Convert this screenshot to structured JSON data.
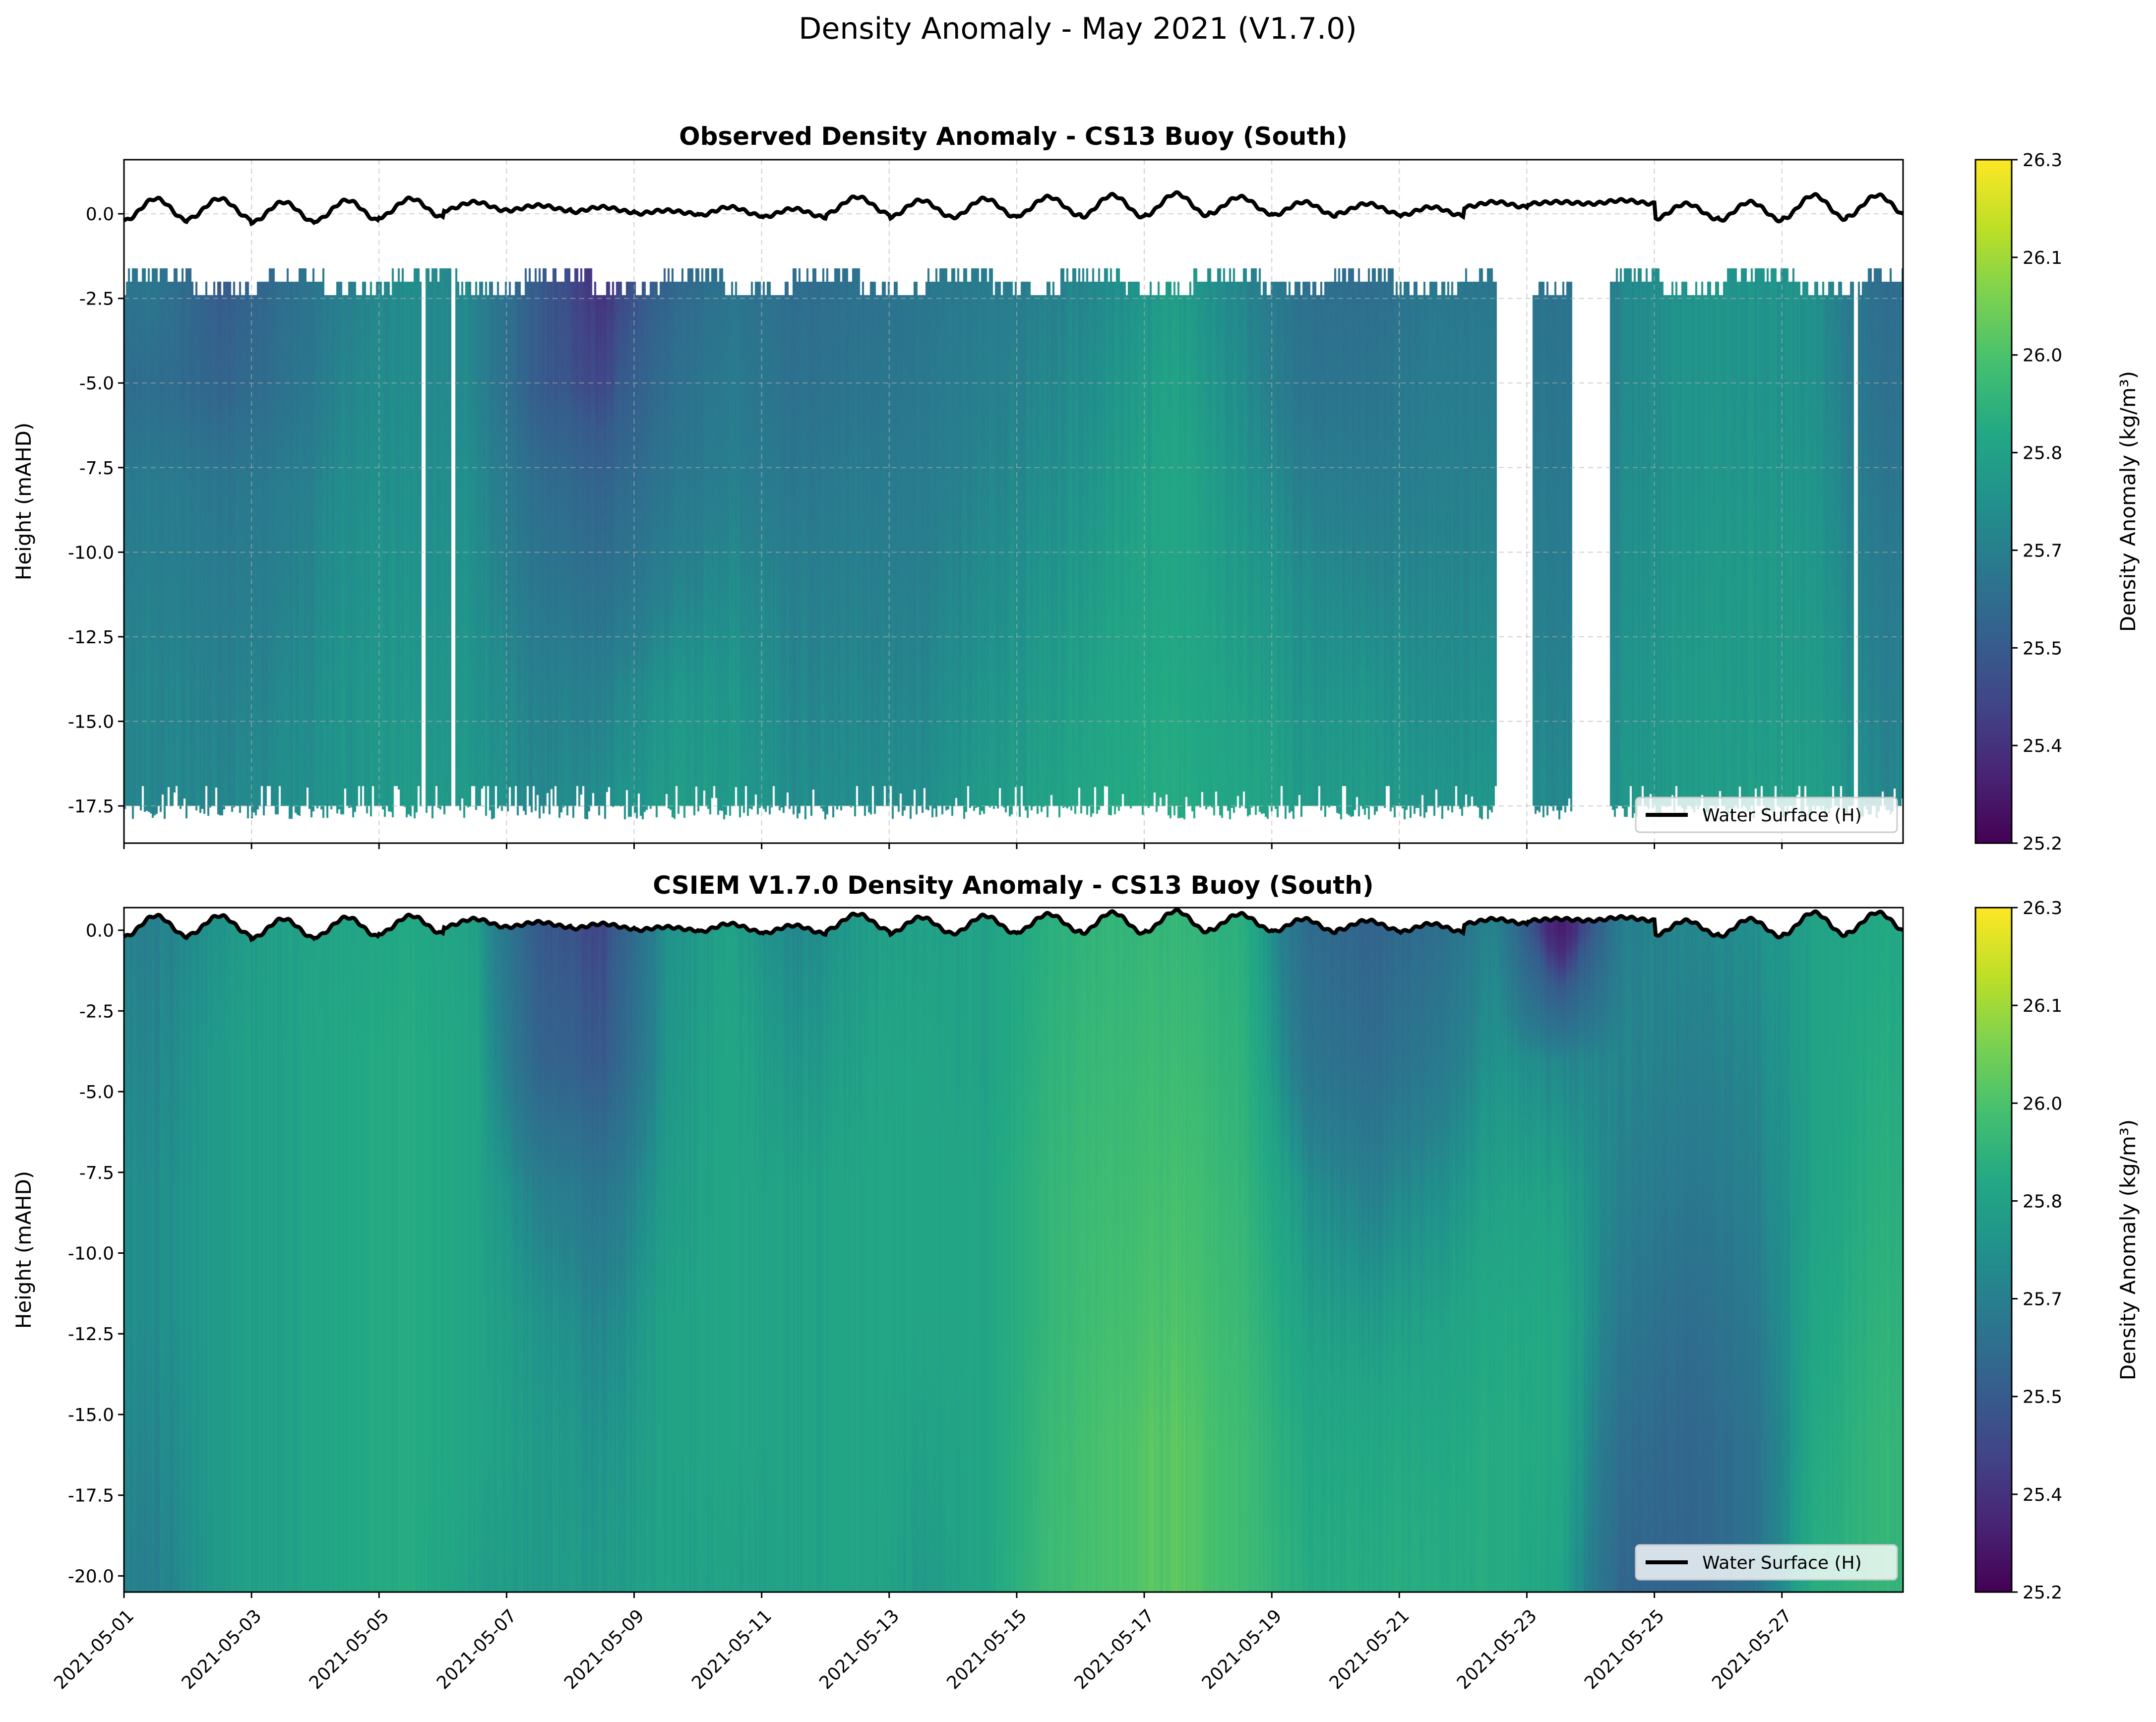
{
  "figure_title": "Density Anomaly - May 2021 (V1.7.0)",
  "colorbar": {
    "label": "Density Anomaly (kg/m³)",
    "ticks": [
      "25.2",
      "25.4",
      "25.5",
      "25.7",
      "25.8",
      "26.0",
      "26.1",
      "26.3"
    ],
    "colormap": "viridis"
  },
  "chart_data": [
    {
      "type": "heatmap",
      "title": "Observed Density Anomaly - CS13 Buoy (South)",
      "ylabel": "Height (mAHD)",
      "xlabel": "",
      "xlim": [
        "2021-05-01",
        "2021-05-28 22:00"
      ],
      "ylim": [
        -18.6,
        1.6
      ],
      "yticks": [
        "-17.5",
        "-15.0",
        "-12.5",
        "-10.0",
        "-7.5",
        "-5.0",
        "-2.5",
        "0.0"
      ],
      "grid": true,
      "legend": {
        "entries": [
          "Water Surface (H)"
        ],
        "placement": "lower-right"
      },
      "data_top_m": -2.0,
      "data_bottom_m": -17.5,
      "gaps": [
        [
          "2021-05-05 16:00",
          "2021-05-05 17:00"
        ],
        [
          "2021-05-06 03:00",
          "2021-05-06 04:00"
        ],
        [
          "2021-05-22 12:00",
          "2021-05-23 02:00"
        ],
        [
          "2021-05-23 17:00",
          "2021-05-24 07:00"
        ],
        [
          "2021-05-28 03:00",
          "2021-05-28 04:00"
        ]
      ],
      "depths_m": [
        -2,
        -5,
        -8,
        -11,
        -14,
        -17
      ],
      "dates": [
        "2021-05-01",
        "2021-05-02",
        "2021-05-03",
        "2021-05-04",
        "2021-05-05",
        "2021-05-06",
        "2021-05-07",
        "2021-05-08",
        "2021-05-09",
        "2021-05-10",
        "2021-05-11",
        "2021-05-12",
        "2021-05-13",
        "2021-05-14",
        "2021-05-15",
        "2021-05-16",
        "2021-05-17",
        "2021-05-18",
        "2021-05-19",
        "2021-05-20",
        "2021-05-21",
        "2021-05-22",
        "2021-05-23",
        "2021-05-24",
        "2021-05-25",
        "2021-05-26",
        "2021-05-27",
        "2021-05-28"
      ],
      "values": [
        [
          25.65,
          25.6,
          25.68,
          25.7,
          25.72,
          25.72
        ],
        [
          25.5,
          25.55,
          25.65,
          25.68,
          25.7,
          25.72
        ],
        [
          25.6,
          25.62,
          25.68,
          25.7,
          25.72,
          25.74
        ],
        [
          25.7,
          25.72,
          25.74,
          25.75,
          25.76,
          25.76
        ],
        [
          25.74,
          25.74,
          25.75,
          25.76,
          25.77,
          25.78
        ],
        [
          25.72,
          25.72,
          25.74,
          25.75,
          25.76,
          25.77
        ],
        [
          25.5,
          25.5,
          25.6,
          25.65,
          25.7,
          25.72
        ],
        [
          25.4,
          25.45,
          25.55,
          25.62,
          25.7,
          25.74
        ],
        [
          25.55,
          25.6,
          25.65,
          25.7,
          25.76,
          25.78
        ],
        [
          25.65,
          25.68,
          25.7,
          25.74,
          25.77,
          25.78
        ],
        [
          25.6,
          25.62,
          25.66,
          25.7,
          25.72,
          25.74
        ],
        [
          25.62,
          25.64,
          25.68,
          25.7,
          25.72,
          25.74
        ],
        [
          25.65,
          25.66,
          25.68,
          25.7,
          25.72,
          25.74
        ],
        [
          25.68,
          25.7,
          25.72,
          25.74,
          25.76,
          25.78
        ],
        [
          25.7,
          25.72,
          25.74,
          25.76,
          25.78,
          25.8
        ],
        [
          25.74,
          25.76,
          25.78,
          25.8,
          25.82,
          25.84
        ],
        [
          25.78,
          25.8,
          25.82,
          25.82,
          25.84,
          25.85
        ],
        [
          25.72,
          25.74,
          25.76,
          25.78,
          25.8,
          25.82
        ],
        [
          25.62,
          25.64,
          25.7,
          25.74,
          25.76,
          25.78
        ],
        [
          25.6,
          25.64,
          25.68,
          25.72,
          25.76,
          25.78
        ],
        [
          25.66,
          25.68,
          25.7,
          25.72,
          25.74,
          25.76
        ],
        [
          25.65,
          25.68,
          25.7,
          25.72,
          25.74,
          25.76
        ],
        [
          25.62,
          25.64,
          25.66,
          25.68,
          25.7,
          25.72
        ],
        [
          25.72,
          25.72,
          25.73,
          25.74,
          25.75,
          25.76
        ],
        [
          25.76,
          25.76,
          25.76,
          25.77,
          25.78,
          25.78
        ],
        [
          25.76,
          25.76,
          25.77,
          25.78,
          25.78,
          25.79
        ],
        [
          25.75,
          25.75,
          25.76,
          25.77,
          25.78,
          25.79
        ],
        [
          25.6,
          25.62,
          25.65,
          25.68,
          25.7,
          25.72
        ]
      ]
    },
    {
      "type": "heatmap",
      "title": "CSIEM V1.7.0 Density Anomaly - CS13 Buoy (South)",
      "ylabel": "Height (mAHD)",
      "xlabel": "",
      "xlim": [
        "2021-05-01",
        "2021-05-28 22:00"
      ],
      "ylim": [
        -20.5,
        0.7
      ],
      "yticks": [
        "-20.0",
        "-17.5",
        "-15.0",
        "-12.5",
        "-10.0",
        "-7.5",
        "-5.0",
        "-2.5",
        "0.0"
      ],
      "xticks": [
        "2021-05-01",
        "2021-05-03",
        "2021-05-05",
        "2021-05-07",
        "2021-05-09",
        "2021-05-11",
        "2021-05-13",
        "2021-05-15",
        "2021-05-17",
        "2021-05-19",
        "2021-05-21",
        "2021-05-23",
        "2021-05-25",
        "2021-05-27"
      ],
      "grid": false,
      "legend": {
        "entries": [
          "Water Surface (H)"
        ],
        "placement": "lower-right"
      },
      "depths_m": [
        0,
        -4,
        -8,
        -12,
        -16,
        -20
      ],
      "dates": [
        "2021-05-01",
        "2021-05-02",
        "2021-05-03",
        "2021-05-04",
        "2021-05-05",
        "2021-05-06",
        "2021-05-07",
        "2021-05-08",
        "2021-05-09",
        "2021-05-10",
        "2021-05-11",
        "2021-05-12",
        "2021-05-13",
        "2021-05-14",
        "2021-05-15",
        "2021-05-16",
        "2021-05-17",
        "2021-05-18",
        "2021-05-19",
        "2021-05-20",
        "2021-05-21",
        "2021-05-22",
        "2021-05-23",
        "2021-05-24",
        "2021-05-25",
        "2021-05-26",
        "2021-05-27",
        "2021-05-28"
      ],
      "values": [
        [
          25.7,
          25.72,
          25.74,
          25.74,
          25.72,
          25.7
        ],
        [
          25.76,
          25.78,
          25.78,
          25.78,
          25.78,
          25.78
        ],
        [
          25.8,
          25.8,
          25.8,
          25.8,
          25.8,
          25.8
        ],
        [
          25.82,
          25.84,
          25.84,
          25.84,
          25.84,
          25.84
        ],
        [
          25.84,
          25.86,
          25.86,
          25.86,
          25.86,
          25.86
        ],
        [
          25.8,
          25.82,
          25.82,
          25.82,
          25.82,
          25.8
        ],
        [
          25.5,
          25.55,
          25.7,
          25.76,
          25.78,
          25.78
        ],
        [
          25.45,
          25.5,
          25.65,
          25.72,
          25.76,
          25.78
        ],
        [
          25.75,
          25.76,
          25.78,
          25.8,
          25.8,
          25.8
        ],
        [
          25.8,
          25.82,
          25.82,
          25.82,
          25.82,
          25.8
        ],
        [
          25.72,
          25.76,
          25.8,
          25.8,
          25.8,
          25.8
        ],
        [
          25.78,
          25.8,
          25.82,
          25.82,
          25.82,
          25.82
        ],
        [
          25.8,
          25.82,
          25.82,
          25.82,
          25.8,
          25.78
        ],
        [
          25.8,
          25.8,
          25.82,
          25.82,
          25.82,
          25.82
        ],
        [
          25.88,
          25.9,
          25.92,
          25.92,
          25.94,
          25.95
        ],
        [
          25.92,
          25.94,
          25.96,
          25.98,
          26.0,
          26.0
        ],
        [
          25.92,
          25.95,
          25.98,
          26.0,
          26.02,
          26.02
        ],
        [
          25.88,
          25.9,
          25.92,
          25.94,
          25.96,
          25.96
        ],
        [
          25.6,
          25.65,
          25.75,
          25.8,
          25.84,
          25.86
        ],
        [
          25.55,
          25.6,
          25.7,
          25.78,
          25.84,
          25.86
        ],
        [
          25.6,
          25.66,
          25.74,
          25.8,
          25.84,
          25.86
        ],
        [
          25.72,
          25.76,
          25.8,
          25.84,
          25.86,
          25.86
        ],
        [
          25.3,
          25.72,
          25.8,
          25.84,
          25.84,
          25.82
        ],
        [
          25.7,
          25.72,
          25.7,
          25.66,
          25.6,
          25.56
        ],
        [
          25.72,
          25.7,
          25.66,
          25.6,
          25.56,
          25.55
        ],
        [
          25.74,
          25.72,
          25.7,
          25.66,
          25.62,
          25.62
        ],
        [
          25.8,
          25.8,
          25.8,
          25.82,
          25.84,
          25.86
        ],
        [
          25.84,
          25.86,
          25.88,
          25.9,
          25.92,
          25.92
        ]
      ]
    }
  ],
  "water_surface": {
    "name": "Water Surface (H)",
    "color": "#000000",
    "daily_high_m": [
      0.45,
      0.45,
      0.35,
      0.4,
      0.45,
      0.35,
      0.25,
      0.2,
      0.1,
      0.2,
      0.15,
      0.5,
      0.4,
      0.45,
      0.5,
      0.55,
      0.6,
      0.5,
      0.35,
      0.3,
      0.2,
      0.35,
      0.35,
      0.4,
      0.3,
      0.35,
      0.55,
      0.55
    ],
    "daily_low_m": [
      -0.2,
      -0.15,
      -0.25,
      -0.2,
      -0.1,
      0.1,
      0.1,
      0.05,
      0.0,
      -0.05,
      -0.1,
      0.0,
      -0.1,
      -0.1,
      -0.05,
      -0.1,
      -0.05,
      0.0,
      -0.05,
      0.0,
      -0.05,
      0.2,
      0.3,
      0.3,
      -0.15,
      -0.2,
      -0.15,
      -0.1
    ]
  }
}
